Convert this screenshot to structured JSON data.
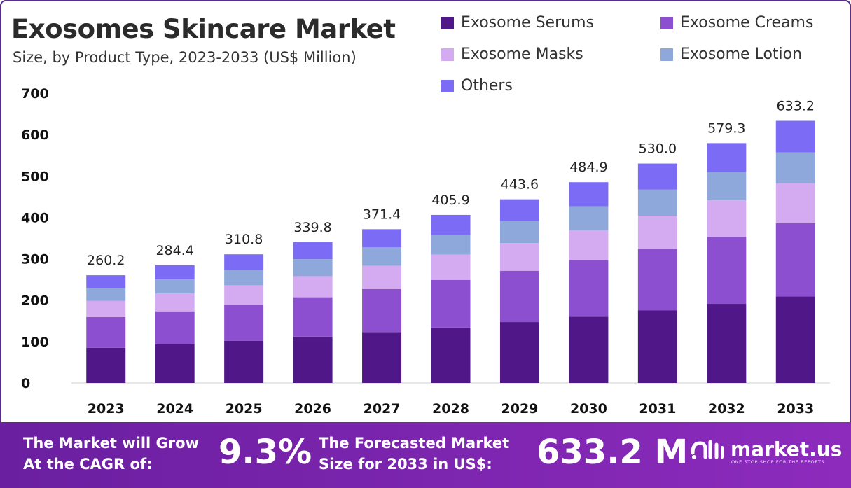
{
  "header": {
    "title": "Exosomes Skincare Market",
    "subtitle": "Size, by Product Type, 2023-2033 (US$ Million)"
  },
  "colors": {
    "Exosome Serums": "#4f1787",
    "Exosome Creams": "#8c4fd0",
    "Exosome Masks": "#d4aaf0",
    "Exosome Lotion": "#8fa8dc",
    "Others": "#7c6cf5",
    "footer_bg": "#7a22ad"
  },
  "chart_data": {
    "type": "bar",
    "stacked": true,
    "categories": [
      "2023",
      "2024",
      "2025",
      "2026",
      "2027",
      "2028",
      "2029",
      "2030",
      "2031",
      "2032",
      "2033"
    ],
    "series": [
      {
        "name": "Exosome Serums",
        "values": [
          85,
          93,
          102,
          112,
          123,
          134,
          147,
          160,
          175,
          191,
          209
        ]
      },
      {
        "name": "Exosome Creams",
        "values": [
          74,
          80,
          87,
          95,
          104,
          115,
          124,
          136,
          149,
          162,
          177
        ]
      },
      {
        "name": "Exosome Masks",
        "values": [
          39,
          43,
          47,
          51,
          56,
          61,
          67,
          73,
          80,
          88,
          96
        ]
      },
      {
        "name": "Exosome Lotion",
        "values": [
          31,
          34,
          37,
          41,
          45,
          48,
          53,
          58,
          63,
          69,
          75
        ]
      },
      {
        "name": "Others",
        "values": [
          31.2,
          34.4,
          37.8,
          40.8,
          43.4,
          47.9,
          52.6,
          57.9,
          63.0,
          69.3,
          76.2
        ]
      }
    ],
    "totals": [
      "260.2",
      "284.4",
      "310.8",
      "339.8",
      "371.4",
      "405.9",
      "443.6",
      "484.9",
      "530.0",
      "579.3",
      "633.2"
    ],
    "yticks": [
      "0",
      "100",
      "200",
      "300",
      "400",
      "500",
      "600",
      "700"
    ],
    "ylim": [
      0,
      700
    ],
    "legend_position": "top-right",
    "grid": false
  },
  "footer": {
    "cagr_line1": "The Market will Grow",
    "cagr_line2": "At the CAGR of:",
    "cagr_value": "9.3%",
    "forecast_line1": "The Forecasted Market",
    "forecast_line2": "Size for 2033 in US$:",
    "forecast_value": "633.2 M",
    "brand_name": "market.us",
    "brand_tagline": "ONE STOP SHOP FOR THE REPORTS",
    "brand_icon": "market-us-logo"
  }
}
